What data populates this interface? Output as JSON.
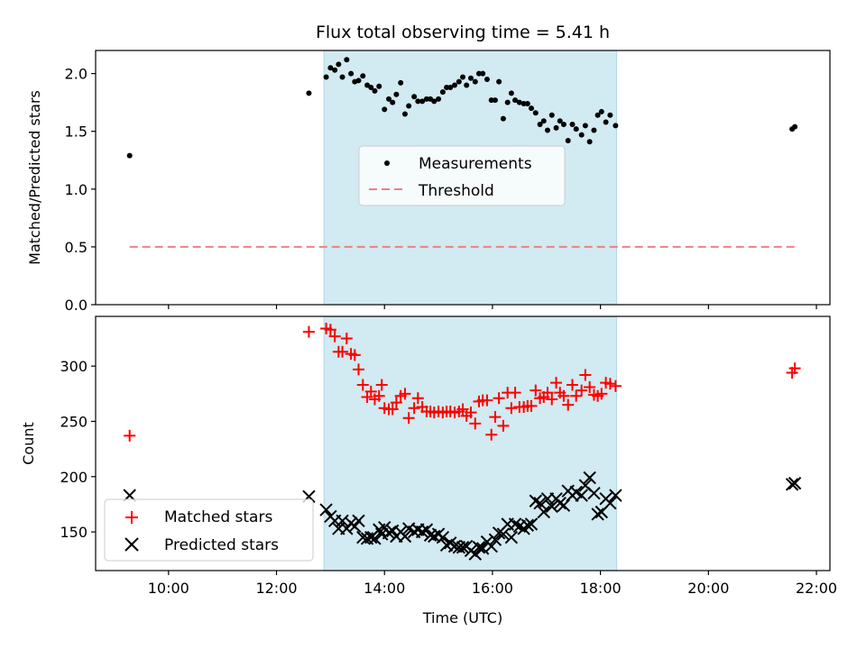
{
  "chart_data": [
    {
      "type": "scatter",
      "title": "Flux total observing time = 5.41 h",
      "ylabel": "Matched/Predicted stars",
      "xlim": [
        8.65,
        22.25
      ],
      "ylim": [
        0,
        2.2
      ],
      "yticks": [
        "0.0",
        "0.5",
        "1.0",
        "1.5",
        "2.0"
      ],
      "shaded_interval": [
        12.88,
        18.3
      ],
      "legend": {
        "placement": "center",
        "entries": [
          "Measurements",
          "Threshold"
        ]
      },
      "threshold": {
        "name": "Threshold",
        "y": 0.5,
        "x": [
          9.28,
          21.6
        ],
        "color": "#f08080"
      },
      "series": [
        {
          "name": "Measurements",
          "color": "#000000",
          "points": [
            [
              9.28,
              1.29
            ],
            [
              12.6,
              1.83
            ],
            [
              12.92,
              1.97
            ],
            [
              13.0,
              2.05
            ],
            [
              13.08,
              2.03
            ],
            [
              13.15,
              2.08
            ],
            [
              13.22,
              1.97
            ],
            [
              13.3,
              2.12
            ],
            [
              13.38,
              2.0
            ],
            [
              13.45,
              1.93
            ],
            [
              13.52,
              1.94
            ],
            [
              13.6,
              1.98
            ],
            [
              13.68,
              1.9
            ],
            [
              13.75,
              1.88
            ],
            [
              13.82,
              1.85
            ],
            [
              13.9,
              1.89
            ],
            [
              14.0,
              1.69
            ],
            [
              14.08,
              1.78
            ],
            [
              14.15,
              1.75
            ],
            [
              14.22,
              1.82
            ],
            [
              14.3,
              1.92
            ],
            [
              14.38,
              1.65
            ],
            [
              14.45,
              1.72
            ],
            [
              14.55,
              1.8
            ],
            [
              14.62,
              1.76
            ],
            [
              14.7,
              1.76
            ],
            [
              14.78,
              1.78
            ],
            [
              14.85,
              1.78
            ],
            [
              14.92,
              1.76
            ],
            [
              15.0,
              1.78
            ],
            [
              15.08,
              1.84
            ],
            [
              15.15,
              1.88
            ],
            [
              15.22,
              1.88
            ],
            [
              15.3,
              1.9
            ],
            [
              15.38,
              1.93
            ],
            [
              15.45,
              1.97
            ],
            [
              15.52,
              1.9
            ],
            [
              15.6,
              1.96
            ],
            [
              15.68,
              1.93
            ],
            [
              15.75,
              2.0
            ],
            [
              15.82,
              2.0
            ],
            [
              15.9,
              1.95
            ],
            [
              15.98,
              1.77
            ],
            [
              16.05,
              1.77
            ],
            [
              16.12,
              1.93
            ],
            [
              16.2,
              1.61
            ],
            [
              16.28,
              1.75
            ],
            [
              16.35,
              1.83
            ],
            [
              16.42,
              1.77
            ],
            [
              16.5,
              1.75
            ],
            [
              16.58,
              1.74
            ],
            [
              16.65,
              1.74
            ],
            [
              16.72,
              1.7
            ],
            [
              16.8,
              1.66
            ],
            [
              16.88,
              1.56
            ],
            [
              16.95,
              1.59
            ],
            [
              17.02,
              1.51
            ],
            [
              17.1,
              1.64
            ],
            [
              17.18,
              1.53
            ],
            [
              17.25,
              1.59
            ],
            [
              17.32,
              1.56
            ],
            [
              17.4,
              1.42
            ],
            [
              17.48,
              1.56
            ],
            [
              17.55,
              1.52
            ],
            [
              17.65,
              1.47
            ],
            [
              17.72,
              1.55
            ],
            [
              17.8,
              1.41
            ],
            [
              17.88,
              1.51
            ],
            [
              17.95,
              1.64
            ],
            [
              18.02,
              1.67
            ],
            [
              18.1,
              1.58
            ],
            [
              18.18,
              1.64
            ],
            [
              18.28,
              1.55
            ],
            [
              21.55,
              1.52
            ],
            [
              21.6,
              1.54
            ]
          ]
        }
      ]
    },
    {
      "type": "scatter",
      "xlabel": "Time (UTC)",
      "ylabel": "Count",
      "xlim": [
        8.65,
        22.25
      ],
      "ylim": [
        115,
        345
      ],
      "xticks": [
        {
          "value": 10,
          "label": "10:00"
        },
        {
          "value": 12,
          "label": "12:00"
        },
        {
          "value": 14,
          "label": "14:00"
        },
        {
          "value": 16,
          "label": "16:00"
        },
        {
          "value": 18,
          "label": "18:00"
        },
        {
          "value": 20,
          "label": "20:00"
        },
        {
          "value": 22,
          "label": "22:00"
        }
      ],
      "yticks": [
        "150",
        "200",
        "250",
        "300"
      ],
      "shaded_interval": [
        12.88,
        18.3
      ],
      "legend": {
        "placement": "lower left",
        "entries": [
          "Matched stars",
          "Predicted stars"
        ]
      },
      "series": [
        {
          "name": "Matched stars",
          "marker": "plus",
          "color": "#ff0000",
          "points": [
            [
              9.28,
              237
            ],
            [
              12.6,
              331
            ],
            [
              12.92,
              334
            ],
            [
              13.0,
              333
            ],
            [
              13.08,
              327
            ],
            [
              13.15,
              313
            ],
            [
              13.22,
              313
            ],
            [
              13.3,
              325
            ],
            [
              13.38,
              311
            ],
            [
              13.45,
              310
            ],
            [
              13.52,
              297
            ],
            [
              13.6,
              283
            ],
            [
              13.68,
              272
            ],
            [
              13.75,
              277
            ],
            [
              13.82,
              270
            ],
            [
              13.9,
              273
            ],
            [
              13.95,
              283
            ],
            [
              14.0,
              262
            ],
            [
              14.08,
              261
            ],
            [
              14.15,
              261
            ],
            [
              14.22,
              267
            ],
            [
              14.3,
              273
            ],
            [
              14.38,
              275
            ],
            [
              14.45,
              253
            ],
            [
              14.55,
              262
            ],
            [
              14.62,
              271
            ],
            [
              14.7,
              263
            ],
            [
              14.78,
              259
            ],
            [
              14.85,
              259
            ],
            [
              14.92,
              258
            ],
            [
              15.0,
              259
            ],
            [
              15.08,
              258
            ],
            [
              15.15,
              259
            ],
            [
              15.22,
              259
            ],
            [
              15.3,
              258
            ],
            [
              15.38,
              259
            ],
            [
              15.45,
              261
            ],
            [
              15.52,
              255
            ],
            [
              15.6,
              258
            ],
            [
              15.68,
              248
            ],
            [
              15.75,
              268
            ],
            [
              15.82,
              269
            ],
            [
              15.9,
              269
            ],
            [
              15.98,
              238
            ],
            [
              16.05,
              254
            ],
            [
              16.12,
              271
            ],
            [
              16.2,
              246
            ],
            [
              16.28,
              276
            ],
            [
              16.35,
              262
            ],
            [
              16.42,
              276
            ],
            [
              16.5,
              263
            ],
            [
              16.58,
              263
            ],
            [
              16.65,
              264
            ],
            [
              16.72,
              264
            ],
            [
              16.8,
              278
            ],
            [
              16.88,
              271
            ],
            [
              16.95,
              272
            ],
            [
              17.02,
              276
            ],
            [
              17.1,
              270
            ],
            [
              17.18,
              285
            ],
            [
              17.25,
              276
            ],
            [
              17.32,
              273
            ],
            [
              17.4,
              265
            ],
            [
              17.48,
              283
            ],
            [
              17.55,
              273
            ],
            [
              17.65,
              278
            ],
            [
              17.72,
              292
            ],
            [
              17.8,
              281
            ],
            [
              17.88,
              274
            ],
            [
              17.95,
              273
            ],
            [
              18.02,
              275
            ],
            [
              18.1,
              285
            ],
            [
              18.18,
              284
            ],
            [
              18.28,
              282
            ],
            [
              21.55,
              294
            ],
            [
              21.6,
              298
            ]
          ]
        },
        {
          "name": "Predicted stars",
          "marker": "x",
          "color": "#000000",
          "points": [
            [
              9.28,
              183
            ],
            [
              12.6,
              182
            ],
            [
              12.92,
              170
            ],
            [
              13.0,
              164
            ],
            [
              13.08,
              160
            ],
            [
              13.15,
              153
            ],
            [
              13.22,
              160
            ],
            [
              13.3,
              153
            ],
            [
              13.38,
              158
            ],
            [
              13.45,
              155
            ],
            [
              13.52,
              160
            ],
            [
              13.6,
              145
            ],
            [
              13.68,
              144
            ],
            [
              13.75,
              145
            ],
            [
              13.82,
              144
            ],
            [
              13.9,
              152
            ],
            [
              13.95,
              148
            ],
            [
              14.0,
              154
            ],
            [
              14.08,
              149
            ],
            [
              14.15,
              151
            ],
            [
              14.22,
              146
            ],
            [
              14.3,
              150
            ],
            [
              14.38,
              146
            ],
            [
              14.45,
              153
            ],
            [
              14.55,
              150
            ],
            [
              14.62,
              152
            ],
            [
              14.7,
              150
            ],
            [
              14.78,
              152
            ],
            [
              14.85,
              147
            ],
            [
              14.92,
              146
            ],
            [
              15.0,
              148
            ],
            [
              15.08,
              145
            ],
            [
              15.15,
              138
            ],
            [
              15.22,
              140
            ],
            [
              15.3,
              137
            ],
            [
              15.38,
              136
            ],
            [
              15.45,
              136
            ],
            [
              15.52,
              137
            ],
            [
              15.6,
              133
            ],
            [
              15.68,
              130
            ],
            [
              15.75,
              136
            ],
            [
              15.82,
              135
            ],
            [
              15.9,
              141
            ],
            [
              15.98,
              137
            ],
            [
              16.05,
              143
            ],
            [
              16.12,
              149
            ],
            [
              16.2,
              148
            ],
            [
              16.28,
              157
            ],
            [
              16.35,
              145
            ],
            [
              16.42,
              157
            ],
            [
              16.5,
              155
            ],
            [
              16.58,
              153
            ],
            [
              16.65,
              156
            ],
            [
              16.72,
              157
            ],
            [
              16.8,
              178
            ],
            [
              16.88,
              176
            ],
            [
              16.95,
              168
            ],
            [
              17.02,
              180
            ],
            [
              17.1,
              173
            ],
            [
              17.18,
              180
            ],
            [
              17.25,
              176
            ],
            [
              17.32,
              174
            ],
            [
              17.4,
              187
            ],
            [
              17.48,
              183
            ],
            [
              17.55,
              186
            ],
            [
              17.65,
              183
            ],
            [
              17.72,
              192
            ],
            [
              17.8,
              199
            ],
            [
              17.88,
              185
            ],
            [
              17.95,
              166
            ],
            [
              18.02,
              168
            ],
            [
              18.1,
              180
            ],
            [
              18.18,
              176
            ],
            [
              18.28,
              183
            ],
            [
              21.55,
              193
            ],
            [
              21.6,
              194
            ]
          ]
        }
      ]
    }
  ]
}
